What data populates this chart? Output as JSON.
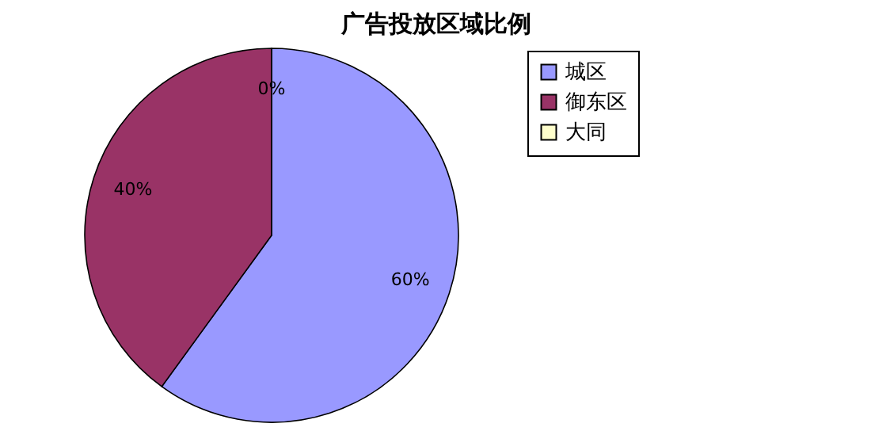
{
  "chart_data": {
    "type": "pie",
    "title": "广告投放区域比例",
    "categories": [
      "城区",
      "御东区",
      "大同"
    ],
    "values": [
      60,
      40,
      0
    ],
    "colors": [
      "#9999ff",
      "#993366",
      "#ffffcc"
    ],
    "value_labels": [
      "60%",
      "40%",
      "0%"
    ],
    "legend": "right"
  }
}
